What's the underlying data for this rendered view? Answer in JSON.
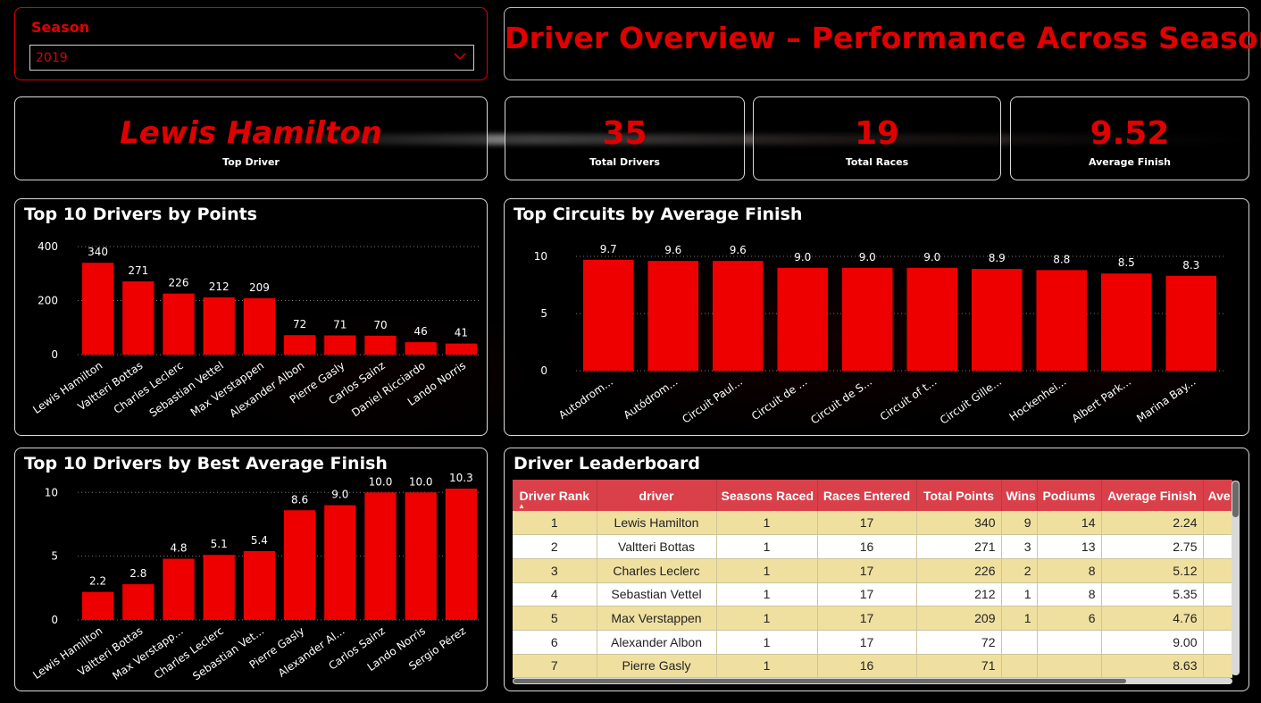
{
  "slicer": {
    "label": "Season",
    "value": "2019"
  },
  "header": {
    "title": "Driver Overview – Performance Across Seasons"
  },
  "kpis": {
    "top_driver": {
      "value": "Lewis Hamilton",
      "label": "Top Driver"
    },
    "total_drivers": {
      "value": "35",
      "label": "Total Drivers"
    },
    "total_races": {
      "value": "19",
      "label": "Total Races"
    },
    "average_finish": {
      "value": "9.52",
      "label": "Average Finish"
    }
  },
  "colors": {
    "accent": "#e00000",
    "bar": "#ee0000",
    "header_row": "#d9404a",
    "band": "#f0e0a0"
  },
  "chart_data": [
    {
      "type": "bar",
      "title": "Top 10 Drivers by Points",
      "categories": [
        "Lewis Hamilton",
        "Valtteri Bottas",
        "Charles Leclerc",
        "Sebastian Vettel",
        "Max Verstappen",
        "Alexander Albon",
        "Pierre Gasly",
        "Carlos Sainz",
        "Daniel Ricciardo",
        "Lando Norris"
      ],
      "values": [
        340,
        271,
        226,
        212,
        209,
        72,
        71,
        70,
        46,
        41
      ],
      "ylim": [
        0,
        400
      ],
      "yticks": [
        "0",
        "200",
        "400"
      ],
      "grid": true
    },
    {
      "type": "bar",
      "title": "Top Circuits by Average Finish",
      "categories": [
        "Autodrom...",
        "Autódrom...",
        "Circuit Paul...",
        "Circuit de ...",
        "Circuit de S...",
        "Circuit of t...",
        "Circuit Gille...",
        "Hockenhei...",
        "Albert Park...",
        "Marina Bay..."
      ],
      "values": [
        9.7,
        9.6,
        9.6,
        9.0,
        9.0,
        9.0,
        8.9,
        8.8,
        8.5,
        8.3
      ],
      "value_labels": [
        "9.7",
        "9.6",
        "9.6",
        "9.0",
        "9.0",
        "9.0",
        "8.9",
        "8.8",
        "8.5",
        "8.3"
      ],
      "ylim": [
        0,
        10
      ],
      "yticks": [
        "0",
        "5",
        "10"
      ],
      "grid": true
    },
    {
      "type": "bar",
      "title": "Top 10 Drivers by Best Average Finish",
      "categories": [
        "Lewis Hamilton",
        "Valtteri Bottas",
        "Max Verstapp...",
        "Charles Leclerc",
        "Sebastian Vet...",
        "Pierre Gasly",
        "Alexander Al...",
        "Carlos Sainz",
        "Lando Norris",
        "Sergio Pérez"
      ],
      "values": [
        2.2,
        2.8,
        4.8,
        5.1,
        5.4,
        8.6,
        9.0,
        10.0,
        10.0,
        10.3
      ],
      "value_labels": [
        "2.2",
        "2.8",
        "4.8",
        "5.1",
        "5.4",
        "8.6",
        "9.0",
        "10.0",
        "10.0",
        "10.3"
      ],
      "ylim": [
        0,
        11
      ],
      "yticks": [
        "0",
        "5",
        "10"
      ],
      "grid": true
    }
  ],
  "leaderboard": {
    "title": "Driver Leaderboard",
    "columns": [
      "Driver Rank",
      "driver",
      "Seasons Raced",
      "Races Entered",
      "Total Points",
      "Wins",
      "Podiums",
      "Average Finish",
      "Ave"
    ],
    "rows": [
      [
        "1",
        "Lewis Hamilton",
        "1",
        "17",
        "340",
        "9",
        "14",
        "2.24",
        ""
      ],
      [
        "2",
        "Valtteri Bottas",
        "1",
        "16",
        "271",
        "3",
        "13",
        "2.75",
        ""
      ],
      [
        "3",
        "Charles Leclerc",
        "1",
        "17",
        "226",
        "2",
        "8",
        "5.12",
        ""
      ],
      [
        "4",
        "Sebastian Vettel",
        "1",
        "17",
        "212",
        "1",
        "8",
        "5.35",
        ""
      ],
      [
        "5",
        "Max Verstappen",
        "1",
        "17",
        "209",
        "1",
        "6",
        "4.76",
        ""
      ],
      [
        "6",
        "Alexander Albon",
        "1",
        "17",
        "72",
        "",
        "",
        "9.00",
        ""
      ],
      [
        "7",
        "Pierre Gasly",
        "1",
        "16",
        "71",
        "",
        "",
        "8.63",
        ""
      ]
    ]
  }
}
